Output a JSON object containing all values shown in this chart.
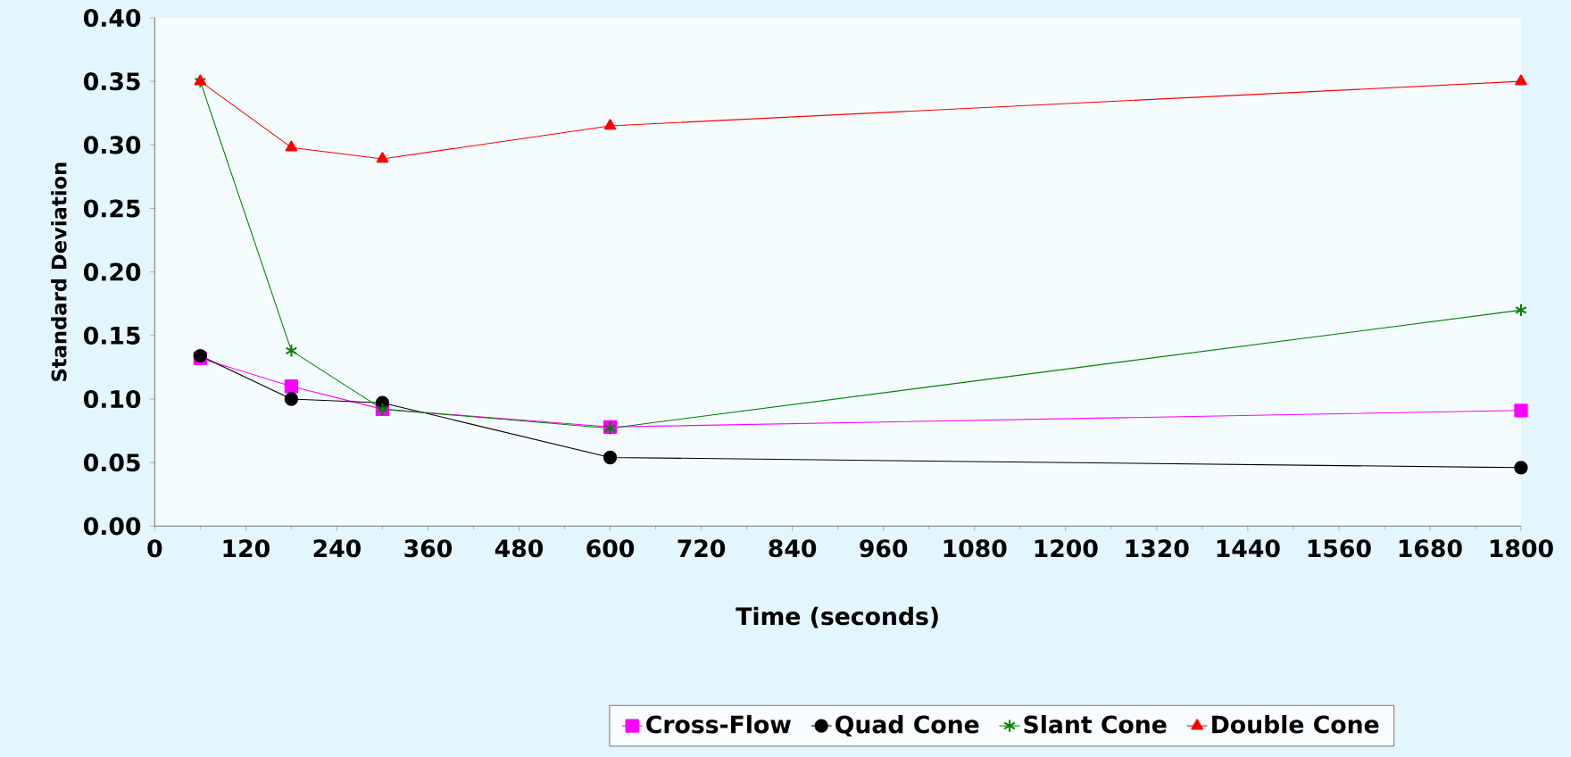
{
  "chart_data": {
    "type": "line",
    "xlabel": "Time (seconds)",
    "ylabel": "Standard Deviation",
    "x": [
      60,
      180,
      300,
      600,
      1800
    ],
    "series": [
      {
        "name": "Cross-Flow",
        "color": "#ff00ff",
        "marker": "square",
        "values": [
          0.132,
          0.11,
          0.092,
          0.078,
          0.091
        ]
      },
      {
        "name": "Quad Cone",
        "color": "#000000",
        "marker": "circle",
        "values": [
          0.134,
          0.1,
          0.097,
          0.054,
          0.046
        ]
      },
      {
        "name": "Slant Cone",
        "color": "#008000",
        "marker": "cross",
        "values": [
          0.35,
          0.138,
          0.092,
          0.077,
          0.17
        ]
      },
      {
        "name": "Double Cone",
        "color": "#ff0000",
        "marker": "triangle",
        "values": [
          0.35,
          0.298,
          0.289,
          0.315,
          0.35
        ]
      }
    ],
    "xlim": [
      0,
      1800
    ],
    "xticks": [
      0,
      120,
      240,
      360,
      480,
      600,
      720,
      840,
      960,
      1080,
      1200,
      1320,
      1440,
      1560,
      1680,
      1800
    ],
    "ylim": [
      0,
      0.4
    ],
    "yticks": [
      {
        "value": 0,
        "label": "0.00"
      },
      {
        "value": 0.05,
        "label": "0.05"
      },
      {
        "value": 0.1,
        "label": "0.10"
      },
      {
        "value": 0.15,
        "label": "0.15"
      },
      {
        "value": 0.2,
        "label": "0.20"
      },
      {
        "value": 0.25,
        "label": "0.25"
      },
      {
        "value": 0.3,
        "label": "0.30"
      },
      {
        "value": 0.35,
        "label": "0.35"
      },
      {
        "value": 0.4,
        "label": "0.40"
      }
    ],
    "grid": false,
    "legend": "bottom",
    "line_style": "solid"
  }
}
